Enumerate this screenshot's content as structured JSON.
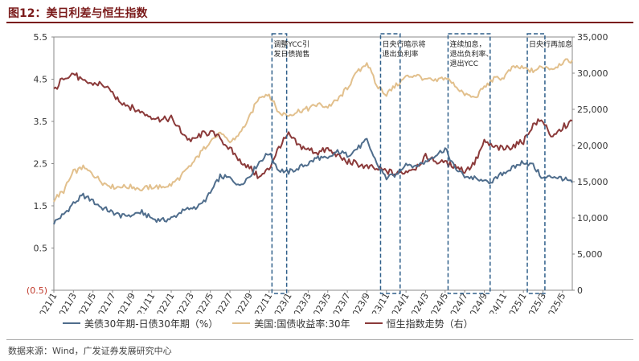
{
  "figure": {
    "title": "图12：美日利差与恒生指数",
    "source": "数据来源：Wind，广发证券发展研究中心"
  },
  "colors": {
    "spread": "#4f6d8c",
    "us_yield": "#e2c08d",
    "hsi": "#8b3a3a",
    "box": "#2f5f8a"
  },
  "chart_data": {
    "type": "line",
    "xlabels": [
      "2021/1",
      "2021/3",
      "2021/5",
      "2021/7",
      "2021/9",
      "2021/11",
      "2022/1",
      "2022/3",
      "2022/5",
      "2022/7",
      "2022/9",
      "2022/11",
      "2023/1",
      "2023/3",
      "2023/5",
      "2023/7",
      "2023/9",
      "2023/11",
      "2024/1",
      "2024/3",
      "2024/5",
      "2024/7",
      "2024/9",
      "2024/11",
      "2025/1",
      "2025/3",
      "2025/5"
    ],
    "x_unit": "month index from 2021/1",
    "left_axis": {
      "ticks": [
        "(0.5)",
        "0.5",
        "1.5",
        "2.5",
        "3.5",
        "4.5",
        "5.5"
      ],
      "range": [
        -0.5,
        5.5
      ]
    },
    "right_axis": {
      "ticks": [
        "0",
        "5,000",
        "10,000",
        "15,000",
        "20,000",
        "25,000",
        "30,000",
        "35,000"
      ],
      "range": [
        0,
        35000
      ]
    },
    "series": [
      {
        "name": "美债30年期-日债30年期（%）",
        "axis": "left",
        "points": [
          [
            0,
            1.1
          ],
          [
            1,
            1.3
          ],
          [
            2,
            1.55
          ],
          [
            3,
            1.75
          ],
          [
            4,
            1.6
          ],
          [
            5,
            1.45
          ],
          [
            6,
            1.35
          ],
          [
            7,
            1.25
          ],
          [
            8,
            1.3
          ],
          [
            9,
            1.35
          ],
          [
            10,
            1.2
          ],
          [
            11,
            1.15
          ],
          [
            12,
            1.2
          ],
          [
            13,
            1.35
          ],
          [
            14,
            1.45
          ],
          [
            15,
            1.5
          ],
          [
            16,
            1.8
          ],
          [
            17,
            2.2
          ],
          [
            18,
            2.15
          ],
          [
            19,
            2.0
          ],
          [
            20,
            2.2
          ],
          [
            21,
            2.55
          ],
          [
            22,
            2.75
          ],
          [
            23,
            2.35
          ],
          [
            24,
            2.3
          ],
          [
            25,
            2.4
          ],
          [
            26,
            2.5
          ],
          [
            27,
            2.65
          ],
          [
            28,
            2.6
          ],
          [
            29,
            2.8
          ],
          [
            30,
            2.7
          ],
          [
            31,
            2.85
          ],
          [
            32,
            3.05
          ],
          [
            33,
            2.5
          ],
          [
            34,
            2.15
          ],
          [
            35,
            2.25
          ],
          [
            36,
            2.5
          ],
          [
            37,
            2.45
          ],
          [
            38,
            2.55
          ],
          [
            39,
            2.7
          ],
          [
            40,
            2.85
          ],
          [
            41,
            2.4
          ],
          [
            42,
            2.2
          ],
          [
            43,
            2.15
          ],
          [
            44,
            2.05
          ],
          [
            45,
            2.1
          ],
          [
            46,
            2.3
          ],
          [
            47,
            2.4
          ],
          [
            48,
            2.55
          ],
          [
            49,
            2.45
          ],
          [
            50,
            2.15
          ],
          [
            51,
            2.2
          ],
          [
            52,
            2.15
          ],
          [
            53,
            2.05
          ]
        ]
      },
      {
        "name": "美国:国债收益率:30年",
        "axis": "left",
        "points": [
          [
            0,
            1.65
          ],
          [
            1,
            1.85
          ],
          [
            2,
            2.3
          ],
          [
            3,
            2.4
          ],
          [
            4,
            2.25
          ],
          [
            5,
            2.05
          ],
          [
            6,
            1.95
          ],
          [
            7,
            1.95
          ],
          [
            8,
            1.95
          ],
          [
            9,
            1.9
          ],
          [
            10,
            1.95
          ],
          [
            11,
            1.95
          ],
          [
            12,
            2.0
          ],
          [
            13,
            2.2
          ],
          [
            14,
            2.45
          ],
          [
            15,
            2.75
          ],
          [
            16,
            3.05
          ],
          [
            17,
            3.2
          ],
          [
            18,
            3.0
          ],
          [
            19,
            3.2
          ],
          [
            20,
            3.6
          ],
          [
            21,
            4.1
          ],
          [
            22,
            4.15
          ],
          [
            23,
            3.7
          ],
          [
            24,
            3.65
          ],
          [
            25,
            3.75
          ],
          [
            26,
            3.8
          ],
          [
            27,
            3.9
          ],
          [
            28,
            3.85
          ],
          [
            29,
            4.0
          ],
          [
            30,
            4.3
          ],
          [
            31,
            4.65
          ],
          [
            32,
            4.9
          ],
          [
            33,
            4.35
          ],
          [
            34,
            4.15
          ],
          [
            35,
            4.35
          ],
          [
            36,
            4.55
          ],
          [
            37,
            4.6
          ],
          [
            38,
            4.5
          ],
          [
            39,
            4.45
          ],
          [
            40,
            4.55
          ],
          [
            41,
            4.35
          ],
          [
            42,
            4.15
          ],
          [
            43,
            4.05
          ],
          [
            44,
            4.3
          ],
          [
            45,
            4.5
          ],
          [
            46,
            4.55
          ],
          [
            47,
            4.8
          ],
          [
            48,
            4.75
          ],
          [
            49,
            4.7
          ],
          [
            50,
            4.8
          ],
          [
            51,
            4.75
          ],
          [
            52,
            4.9
          ],
          [
            53,
            4.95
          ]
        ]
      },
      {
        "name": "恒生指数走势（右）",
        "axis": "right",
        "points": [
          [
            0,
            27500
          ],
          [
            1,
            29500
          ],
          [
            2,
            30000
          ],
          [
            3,
            28800
          ],
          [
            4,
            28600
          ],
          [
            5,
            28500
          ],
          [
            6,
            27000
          ],
          [
            7,
            26000
          ],
          [
            8,
            25200
          ],
          [
            9,
            24500
          ],
          [
            10,
            24000
          ],
          [
            11,
            23500
          ],
          [
            12,
            23800
          ],
          [
            13,
            22000
          ],
          [
            14,
            20500
          ],
          [
            15,
            21500
          ],
          [
            16,
            21800
          ],
          [
            17,
            21000
          ],
          [
            18,
            19500
          ],
          [
            19,
            18000
          ],
          [
            20,
            17000
          ],
          [
            21,
            15500
          ],
          [
            22,
            16800
          ],
          [
            23,
            19800
          ],
          [
            24,
            21500
          ],
          [
            25,
            20000
          ],
          [
            26,
            19500
          ],
          [
            27,
            19000
          ],
          [
            28,
            19500
          ],
          [
            29,
            18500
          ],
          [
            30,
            17800
          ],
          [
            31,
            17500
          ],
          [
            32,
            17000
          ],
          [
            33,
            16800
          ],
          [
            34,
            16500
          ],
          [
            35,
            16000
          ],
          [
            36,
            16500
          ],
          [
            37,
            17000
          ],
          [
            38,
            18500
          ],
          [
            39,
            17800
          ],
          [
            40,
            17500
          ],
          [
            41,
            17200
          ],
          [
            42,
            16500
          ],
          [
            43,
            17500
          ],
          [
            44,
            20500
          ],
          [
            45,
            19800
          ],
          [
            46,
            19500
          ],
          [
            47,
            20000
          ],
          [
            48,
            20500
          ],
          [
            49,
            23000
          ],
          [
            50,
            23500
          ],
          [
            51,
            21000
          ],
          [
            52,
            22500
          ],
          [
            53,
            23400
          ]
        ]
      }
    ],
    "annotations": [
      {
        "text_lines": [
          "调整YCC引",
          "发日债抛售"
        ],
        "x_start": 22.3,
        "x_end": 23.8
      },
      {
        "text_lines": [
          "日央行暗示将",
          "退出负利率"
        ],
        "x_start": 33.4,
        "x_end": 35.4
      },
      {
        "text_lines": [
          "连续加息，",
          "退出负利率、",
          "退出YCC"
        ],
        "x_start": 40.3,
        "x_end": 44.6
      },
      {
        "text_lines": [
          "日央行再加息"
        ],
        "x_start": 48.4,
        "x_end": 50.2
      }
    ],
    "legend": {
      "position": "bottom"
    }
  }
}
